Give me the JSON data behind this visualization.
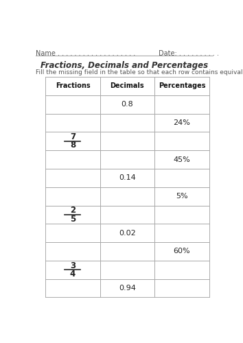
{
  "title": "Fractions, Decimals and Percentages",
  "instruction": "Fill the missing field in the table so that each row contains equivalent values:",
  "name_label": "Name . . . . . . . . . . . . . . . . . . .",
  "date_label": "Date: . . . . . . . . . .",
  "col_headers": [
    "Fractions",
    "Decimals",
    "Percentages"
  ],
  "rows": [
    {
      "fraction": "",
      "decimal": "0.8",
      "percentage": ""
    },
    {
      "fraction": "",
      "decimal": "",
      "percentage": "24%"
    },
    {
      "fraction": [
        "7",
        "8"
      ],
      "decimal": "",
      "percentage": ""
    },
    {
      "fraction": "",
      "decimal": "",
      "percentage": "45%"
    },
    {
      "fraction": "",
      "decimal": "0.14",
      "percentage": ""
    },
    {
      "fraction": "",
      "decimal": "",
      "percentage": "5%"
    },
    {
      "fraction": [
        "2",
        "5"
      ],
      "decimal": "",
      "percentage": ""
    },
    {
      "fraction": "",
      "decimal": "0.02",
      "percentage": ""
    },
    {
      "fraction": "",
      "decimal": "",
      "percentage": "60%"
    },
    {
      "fraction": [
        "3",
        "4"
      ],
      "decimal": "",
      "percentage": ""
    },
    {
      "fraction": "",
      "decimal": "0.94",
      "percentage": ""
    }
  ],
  "bg_color": "#ffffff",
  "text_color": "#555555",
  "table_text_color": "#222222",
  "header_text_color": "#111111",
  "grid_color": "#aaaaaa",
  "title_color": "#333333"
}
